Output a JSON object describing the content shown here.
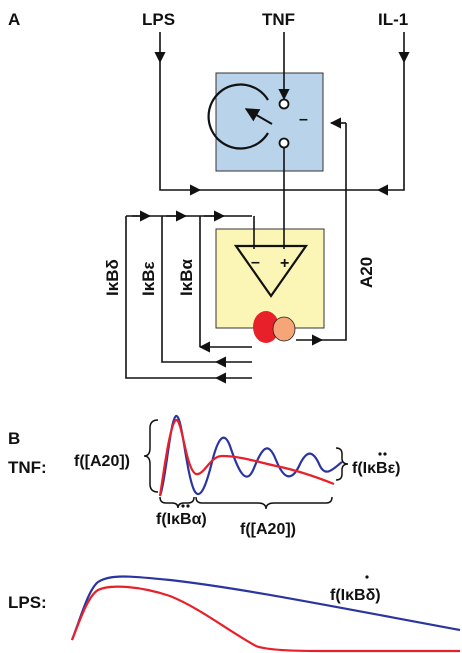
{
  "panel_a": {
    "label": "A",
    "inputs": {
      "lps": "LPS",
      "tnf": "TNF",
      "il1": "IL-1"
    },
    "minus_sign": "–",
    "feedback": {
      "ikbd": "IκBδ",
      "ikbe": "IκBε",
      "ikba": "IκBα",
      "a20": "A20"
    },
    "amplifier": {
      "minus": "–",
      "plus": "+"
    },
    "colors": {
      "switch_box": "#b8d3ea",
      "amp_box": "#fbf6b5",
      "nfkb_red": "#e8202a",
      "nfkb_orange": "#f5a577"
    }
  },
  "panel_b": {
    "label": "B",
    "tnf": {
      "row_label": "TNF:",
      "left_annotation": "f([A20])",
      "right_annotation": "f(IκBε)",
      "lower_left_annotation": "f(IκBα)",
      "lower_right_annotation": "f([A20])"
    },
    "lps": {
      "row_label": "LPS:",
      "annotation": "f(IκBδ)"
    },
    "colors": {
      "blue_trace": "#2b35a0",
      "red_trace": "#e8202a"
    }
  }
}
